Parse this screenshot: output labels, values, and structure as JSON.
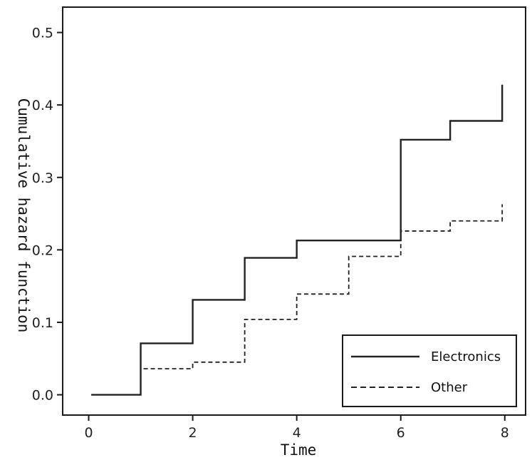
{
  "chart_data": {
    "type": "line",
    "title": "",
    "xlabel": "Time",
    "ylabel": "Cumulative hazard function",
    "xlim": [
      -0.5,
      8.4
    ],
    "ylim": [
      -0.028,
      0.535
    ],
    "xticks": [
      0,
      2,
      4,
      6,
      8
    ],
    "xtick_labels": [
      "0",
      "2",
      "4",
      "6",
      "8"
    ],
    "yticks": [
      0.0,
      0.1,
      0.2,
      0.3,
      0.4,
      0.5
    ],
    "ytick_labels": [
      "0.0",
      "0.1",
      "0.2",
      "0.3",
      "0.4",
      "0.5"
    ],
    "grid": false,
    "legend_position": "bottom-right",
    "series": [
      {
        "name": "Electronics",
        "line_style": "solid",
        "color": "#222222",
        "step_x": [
          0.05,
          1.0,
          2.0,
          3.0,
          4.0,
          6.0,
          6.95,
          7.95,
          7.95
        ],
        "step_y": [
          0.0,
          0.071,
          0.131,
          0.189,
          0.213,
          0.352,
          0.378,
          0.378,
          0.428
        ]
      },
      {
        "name": "Other",
        "line_style": "dashed",
        "color": "#222222",
        "step_x": [
          0.05,
          1.0,
          2.0,
          3.0,
          4.0,
          5.0,
          6.0,
          6.95,
          7.95,
          7.95
        ],
        "step_y": [
          0.0,
          0.036,
          0.045,
          0.104,
          0.139,
          0.191,
          0.226,
          0.24,
          0.24,
          0.263
        ]
      }
    ]
  }
}
